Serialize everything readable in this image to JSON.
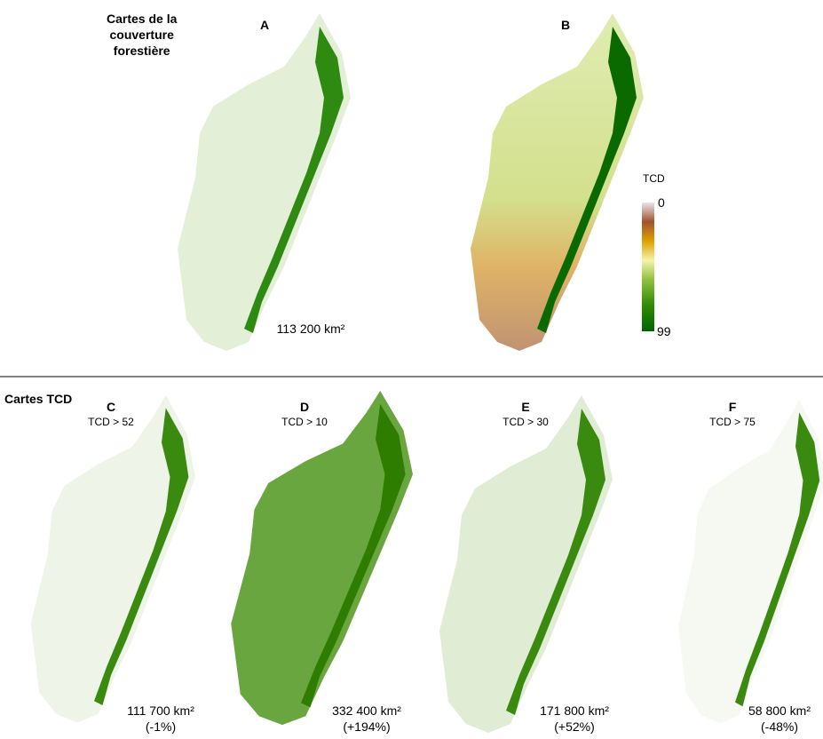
{
  "top": {
    "title_lines": [
      "Cartes de la",
      "couverture",
      "forestière"
    ],
    "panels": [
      {
        "label": "A",
        "area": "113 200 km²"
      },
      {
        "label": "B"
      }
    ],
    "legend": {
      "title": "TCD",
      "min": 0,
      "max": 99
    }
  },
  "bottom": {
    "title": "Cartes TCD",
    "panels": [
      {
        "label": "C",
        "threshold": "TCD > 52",
        "area": "111 700 km²",
        "change": "(-1%)"
      },
      {
        "label": "D",
        "threshold": "TCD > 10",
        "area": "332 400 km²",
        "change": "(+194%)"
      },
      {
        "label": "E",
        "threshold": "TCD > 30",
        "area": "171 800 km²",
        "change": "(+52%)"
      },
      {
        "label": "F",
        "threshold": "TCD > 75",
        "area": "58 800 km²",
        "change": "(-48%)"
      }
    ]
  }
}
